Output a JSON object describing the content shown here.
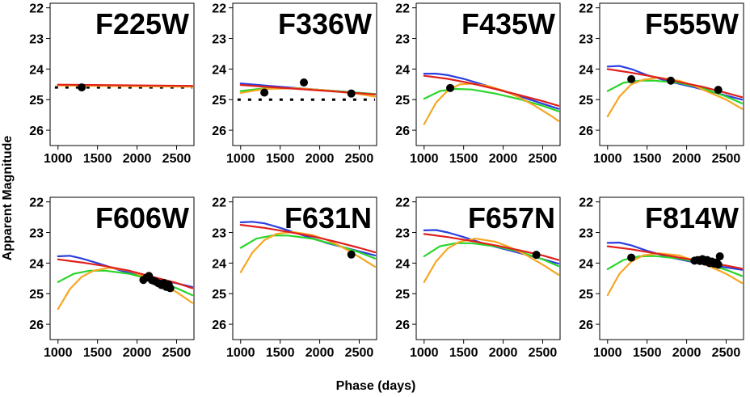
{
  "chart_data": {
    "type": "line",
    "xlabel": "Phase (days)",
    "ylabel": "Apparent Magnitude",
    "xlim": [
      900,
      2720
    ],
    "ylim": [
      26.5,
      21.85
    ],
    "y_inverted": true,
    "xticks": [
      1000,
      1500,
      2000,
      2500
    ],
    "yticks": [
      22,
      23,
      24,
      25,
      26
    ],
    "model_colors": [
      "#2b3fe0",
      "#e0201c",
      "#2bd52b",
      "#f5a623"
    ],
    "panels": [
      {
        "title": "F225W",
        "series": [
          {
            "color": "#2b3fe0",
            "x": [
              1000,
              2700
            ],
            "y": [
              24.52,
              24.56
            ]
          },
          {
            "color": "#2bd52b",
            "x": [
              1000,
              2700
            ],
            "y": [
              24.53,
              24.57
            ]
          },
          {
            "color": "#f5a623",
            "x": [
              1000,
              2700
            ],
            "y": [
              24.54,
              24.58
            ]
          },
          {
            "color": "#e0201c",
            "x": [
              1000,
              2700
            ],
            "y": [
              24.51,
              24.55
            ]
          }
        ],
        "limit": {
          "x": [
            960,
            2700
          ],
          "y": 24.6
        },
        "points": [
          {
            "x": 1300,
            "y": 24.6
          }
        ]
      },
      {
        "title": "F336W",
        "series": [
          {
            "color": "#2b3fe0",
            "x": [
              1000,
              1500,
              2000,
              2500,
              2700
            ],
            "y": [
              24.47,
              24.58,
              24.68,
              24.78,
              24.82
            ]
          },
          {
            "color": "#2bd52b",
            "x": [
              1000,
              1300,
              1700,
              2100,
              2500,
              2700
            ],
            "y": [
              24.72,
              24.63,
              24.63,
              24.7,
              24.78,
              24.82
            ]
          },
          {
            "color": "#f5a623",
            "x": [
              1000,
              1300,
              1700,
              2100,
              2500,
              2700
            ],
            "y": [
              24.78,
              24.65,
              24.63,
              24.7,
              24.82,
              24.9
            ]
          },
          {
            "color": "#e0201c",
            "x": [
              1000,
              1500,
              2000,
              2500,
              2700
            ],
            "y": [
              24.52,
              24.61,
              24.7,
              24.79,
              24.83
            ]
          }
        ],
        "limit": {
          "x": [
            960,
            2700
          ],
          "y": 25.0
        },
        "points": [
          {
            "x": 1300,
            "y": 24.77
          },
          {
            "x": 1800,
            "y": 24.44
          },
          {
            "x": 2400,
            "y": 24.8
          }
        ]
      },
      {
        "title": "F435W",
        "series": [
          {
            "color": "#2b3fe0",
            "x": [
              1000,
              1150,
              1300,
              1500,
              1800,
              2100,
              2400,
              2700
            ],
            "y": [
              24.15,
              24.15,
              24.2,
              24.32,
              24.55,
              24.8,
              25.05,
              25.3
            ]
          },
          {
            "color": "#2bd52b",
            "x": [
              1000,
              1200,
              1400,
              1600,
              1900,
              2200,
              2500,
              2700
            ],
            "y": [
              24.97,
              24.72,
              24.65,
              24.67,
              24.8,
              24.98,
              25.2,
              25.38
            ]
          },
          {
            "color": "#f5a623",
            "x": [
              1000,
              1150,
              1300,
              1450,
              1600,
              1800,
              2000,
              2200,
              2400,
              2600,
              2700
            ],
            "y": [
              25.8,
              25.1,
              24.7,
              24.5,
              24.48,
              24.55,
              24.7,
              24.92,
              25.2,
              25.52,
              25.7
            ]
          },
          {
            "color": "#e0201c",
            "x": [
              1000,
              1300,
              1600,
              1900,
              2200,
              2500,
              2700
            ],
            "y": [
              24.22,
              24.32,
              24.47,
              24.65,
              24.85,
              25.05,
              25.2
            ]
          }
        ],
        "points": [
          {
            "x": 1330,
            "y": 24.62
          }
        ]
      },
      {
        "title": "F555W",
        "series": [
          {
            "color": "#2b3fe0",
            "x": [
              1000,
              1150,
              1300,
              1500,
              1800,
              2100,
              2400,
              2700
            ],
            "y": [
              23.92,
              23.9,
              24.0,
              24.2,
              24.42,
              24.6,
              24.8,
              25.0
            ]
          },
          {
            "color": "#2bd52b",
            "x": [
              1000,
              1200,
              1400,
              1600,
              1900,
              2200,
              2500,
              2700
            ],
            "y": [
              24.72,
              24.45,
              24.38,
              24.38,
              24.45,
              24.62,
              24.9,
              25.12
            ]
          },
          {
            "color": "#f5a623",
            "x": [
              1000,
              1150,
              1300,
              1450,
              1650,
              1900,
              2100,
              2300,
              2500,
              2700
            ],
            "y": [
              25.55,
              24.9,
              24.5,
              24.35,
              24.28,
              24.38,
              24.55,
              24.78,
              25.0,
              25.3
            ]
          },
          {
            "color": "#e0201c",
            "x": [
              1000,
              1300,
              1600,
              1900,
              2200,
              2500,
              2700
            ],
            "y": [
              24.0,
              24.12,
              24.26,
              24.42,
              24.58,
              24.78,
              24.92
            ]
          }
        ],
        "points": [
          {
            "x": 1300,
            "y": 24.33
          },
          {
            "x": 1800,
            "y": 24.38
          },
          {
            "x": 2400,
            "y": 24.68
          }
        ]
      },
      {
        "title": "F606W",
        "series": [
          {
            "color": "#2b3fe0",
            "x": [
              1000,
              1150,
              1300,
              1500,
              1800,
              2100,
              2400,
              2700
            ],
            "y": [
              23.78,
              23.76,
              23.85,
              24.0,
              24.25,
              24.45,
              24.6,
              24.78
            ]
          },
          {
            "color": "#2bd52b",
            "x": [
              1000,
              1200,
              1400,
              1600,
              1900,
              2200,
              2500,
              2700
            ],
            "y": [
              24.62,
              24.35,
              24.25,
              24.25,
              24.35,
              24.55,
              24.82,
              25.05
            ]
          },
          {
            "color": "#f5a623",
            "x": [
              1000,
              1150,
              1300,
              1450,
              1650,
              1900,
              2100,
              2300,
              2500,
              2700
            ],
            "y": [
              25.5,
              24.85,
              24.45,
              24.25,
              24.15,
              24.25,
              24.45,
              24.68,
              24.95,
              25.3
            ]
          },
          {
            "color": "#e0201c",
            "x": [
              1000,
              1300,
              1600,
              1900,
              2200,
              2500,
              2700
            ],
            "y": [
              23.88,
              23.98,
              24.1,
              24.25,
              24.45,
              24.65,
              24.82
            ]
          }
        ],
        "points": [
          {
            "x": 2080,
            "y": 24.55
          },
          {
            "x": 2120,
            "y": 24.48
          },
          {
            "x": 2150,
            "y": 24.42
          },
          {
            "x": 2190,
            "y": 24.56
          },
          {
            "x": 2230,
            "y": 24.6
          },
          {
            "x": 2270,
            "y": 24.66
          },
          {
            "x": 2310,
            "y": 24.72
          },
          {
            "x": 2340,
            "y": 24.65
          },
          {
            "x": 2370,
            "y": 24.78
          },
          {
            "x": 2400,
            "y": 24.7
          },
          {
            "x": 2420,
            "y": 24.82
          }
        ]
      },
      {
        "title": "F631N",
        "series": [
          {
            "color": "#2b3fe0",
            "x": [
              1000,
              1150,
              1300,
              1500,
              1800,
              2100,
              2400,
              2700
            ],
            "y": [
              22.67,
              22.65,
              22.7,
              22.85,
              23.1,
              23.35,
              23.55,
              23.75
            ]
          },
          {
            "color": "#2bd52b",
            "x": [
              1000,
              1200,
              1400,
              1600,
              1900,
              2200,
              2500,
              2700
            ],
            "y": [
              23.5,
              23.2,
              23.1,
              23.1,
              23.2,
              23.4,
              23.65,
              23.85
            ]
          },
          {
            "color": "#f5a623",
            "x": [
              1000,
              1150,
              1300,
              1450,
              1650,
              1900,
              2100,
              2300,
              2500,
              2700
            ],
            "y": [
              24.3,
              23.65,
              23.25,
              23.05,
              22.98,
              23.08,
              23.25,
              23.5,
              23.8,
              24.12
            ]
          },
          {
            "color": "#e0201c",
            "x": [
              1000,
              1300,
              1600,
              1900,
              2200,
              2500,
              2700
            ],
            "y": [
              22.75,
              22.85,
              22.98,
              23.12,
              23.3,
              23.5,
              23.65
            ]
          }
        ],
        "points": [
          {
            "x": 2400,
            "y": 23.72
          }
        ]
      },
      {
        "title": "F657N",
        "series": [
          {
            "color": "#2b3fe0",
            "x": [
              1000,
              1150,
              1300,
              1500,
              1800,
              2100,
              2400,
              2700
            ],
            "y": [
              22.93,
              22.92,
              23.0,
              23.15,
              23.4,
              23.6,
              23.8,
              24.02
            ]
          },
          {
            "color": "#2bd52b",
            "x": [
              1000,
              1200,
              1400,
              1600,
              1900,
              2200,
              2500,
              2700
            ],
            "y": [
              23.78,
              23.45,
              23.35,
              23.35,
              23.45,
              23.62,
              23.88,
              24.1
            ]
          },
          {
            "color": "#f5a623",
            "x": [
              1000,
              1150,
              1300,
              1450,
              1650,
              1900,
              2100,
              2300,
              2500,
              2700
            ],
            "y": [
              24.62,
              23.95,
              23.52,
              23.3,
              23.2,
              23.3,
              23.5,
              23.75,
              24.05,
              24.38
            ]
          },
          {
            "color": "#e0201c",
            "x": [
              1000,
              1300,
              1600,
              1900,
              2200,
              2500,
              2700
            ],
            "y": [
              23.05,
              23.15,
              23.28,
              23.42,
              23.58,
              23.75,
              23.9
            ]
          }
        ],
        "points": [
          {
            "x": 2420,
            "y": 23.73
          }
        ]
      },
      {
        "title": "F814W",
        "series": [
          {
            "color": "#2b3fe0",
            "x": [
              1000,
              1150,
              1300,
              1500,
              1800,
              2100,
              2400,
              2700
            ],
            "y": [
              23.34,
              23.33,
              23.42,
              23.6,
              23.82,
              23.98,
              24.1,
              24.22
            ]
          },
          {
            "color": "#2bd52b",
            "x": [
              1000,
              1200,
              1400,
              1600,
              1900,
              2200,
              2500,
              2700
            ],
            "y": [
              24.2,
              23.9,
              23.78,
              23.77,
              23.85,
              24.0,
              24.22,
              24.42
            ]
          },
          {
            "color": "#f5a623",
            "x": [
              1000,
              1150,
              1300,
              1450,
              1650,
              1900,
              2100,
              2300,
              2500,
              2700
            ],
            "y": [
              25.05,
              24.35,
              23.95,
              23.75,
              23.68,
              23.75,
              23.92,
              24.12,
              24.35,
              24.65
            ]
          },
          {
            "color": "#e0201c",
            "x": [
              1000,
              1300,
              1600,
              1900,
              2200,
              2500,
              2700
            ],
            "y": [
              23.45,
              23.55,
              23.68,
              23.82,
              23.95,
              24.08,
              24.18
            ]
          }
        ],
        "points": [
          {
            "x": 1300,
            "y": 23.82
          },
          {
            "x": 2100,
            "y": 23.92
          },
          {
            "x": 2140,
            "y": 23.9
          },
          {
            "x": 2170,
            "y": 23.93
          },
          {
            "x": 2200,
            "y": 23.87
          },
          {
            "x": 2230,
            "y": 23.95
          },
          {
            "x": 2260,
            "y": 23.9
          },
          {
            "x": 2290,
            "y": 24.0
          },
          {
            "x": 2320,
            "y": 23.95
          },
          {
            "x": 2350,
            "y": 24.02
          },
          {
            "x": 2380,
            "y": 23.98
          },
          {
            "x": 2400,
            "y": 24.05
          },
          {
            "x": 2420,
            "y": 23.78
          }
        ]
      }
    ]
  }
}
